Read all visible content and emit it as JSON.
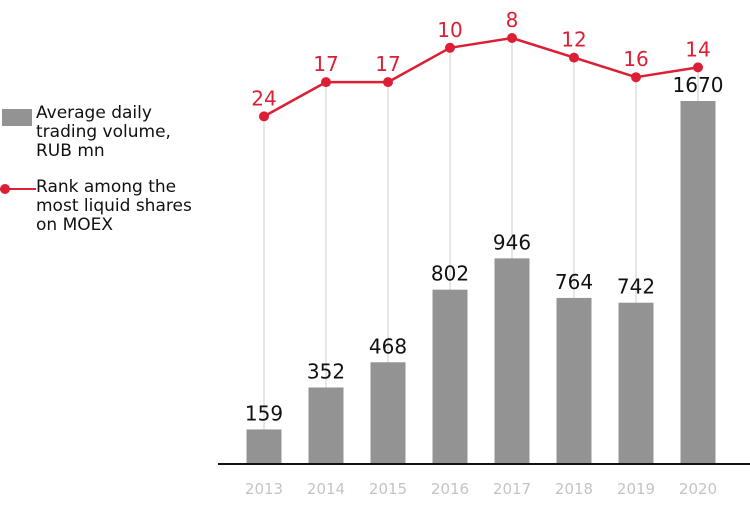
{
  "chart_data": {
    "type": "bar",
    "categories": [
      "2013",
      "2014",
      "2015",
      "2016",
      "2017",
      "2018",
      "2019",
      "2020"
    ],
    "series": [
      {
        "name": "Average daily trading volume, RUB mn",
        "type": "bar",
        "values": [
          159,
          352,
          468,
          802,
          946,
          764,
          742,
          1670
        ],
        "color": "#939393"
      },
      {
        "name": "Rank among the most liquid shares on MOEX",
        "type": "line",
        "values": [
          24,
          17,
          17,
          10,
          8,
          12,
          16,
          14
        ],
        "color": "#dc1f34"
      }
    ],
    "legend_position": "left",
    "grid": false
  }
}
